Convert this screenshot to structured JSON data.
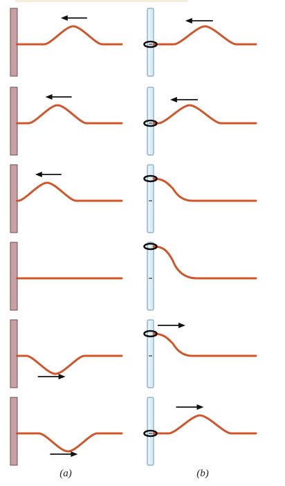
{
  "figure": {
    "top_strip_color": "#f4eed8",
    "colors": {
      "wave": "#d2552a",
      "wall": "#c8a0a4",
      "wall_edge": "#6d4a4e",
      "rod": "#d9ecf7",
      "rod_edge": "#7fa9c4",
      "ring": "#111111"
    },
    "labels": {
      "a": "(a)",
      "b": "(b)"
    },
    "columns": [
      {
        "id": "a",
        "support": "fixed-wall",
        "frames": [
          {
            "pulse": "crest",
            "pulse_position": 0.35,
            "direction": "left"
          },
          {
            "pulse": "crest",
            "pulse_position": 0.2,
            "direction": "left"
          },
          {
            "pulse": "crest",
            "pulse_position": 0.1,
            "direction": "left"
          },
          {
            "pulse": "flat",
            "direction": "none"
          },
          {
            "pulse": "trough",
            "pulse_position": 0.18,
            "direction": "right"
          },
          {
            "pulse": "trough",
            "pulse_position": 0.3,
            "direction": "right"
          }
        ]
      },
      {
        "id": "b",
        "support": "ring-on-rod",
        "frames": [
          {
            "pulse": "crest",
            "pulse_position": 0.3,
            "direction": "left"
          },
          {
            "pulse": "crest",
            "pulse_position": 0.15,
            "direction": "left"
          },
          {
            "pulse": "crest-at-end",
            "direction": "none"
          },
          {
            "pulse": "crest-at-end-high",
            "direction": "none"
          },
          {
            "pulse": "crest-at-end",
            "direction": "right"
          },
          {
            "pulse": "crest",
            "pulse_position": 0.25,
            "direction": "right"
          }
        ]
      }
    ]
  }
}
